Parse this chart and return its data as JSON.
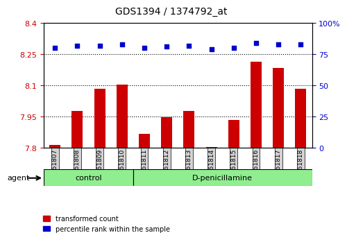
{
  "title": "GDS1394 / 1374792_at",
  "samples": [
    "GSM61807",
    "GSM61808",
    "GSM61809",
    "GSM61810",
    "GSM61811",
    "GSM61812",
    "GSM61813",
    "GSM61814",
    "GSM61815",
    "GSM61816",
    "GSM61817",
    "GSM61818"
  ],
  "red_values": [
    7.814,
    7.977,
    8.085,
    8.102,
    7.866,
    7.946,
    7.975,
    7.804,
    7.932,
    8.215,
    8.185,
    8.085
  ],
  "blue_values": [
    80,
    82,
    82,
    83,
    80,
    81,
    82,
    79,
    80,
    84,
    83,
    83
  ],
  "ylim_left": [
    7.8,
    8.4
  ],
  "ylim_right": [
    0,
    100
  ],
  "yticks_left": [
    7.8,
    7.95,
    8.1,
    8.25,
    8.4
  ],
  "yticks_right": [
    0,
    25,
    50,
    75,
    100
  ],
  "ytick_labels_left": [
    "7.8",
    "7.95",
    "8.1",
    "8.25",
    "8.4"
  ],
  "ytick_labels_right": [
    "0",
    "25",
    "50",
    "75",
    "100%"
  ],
  "hlines": [
    7.95,
    8.1,
    8.25
  ],
  "control_indices": [
    0,
    1,
    2,
    3
  ],
  "dpenicillamine_indices": [
    4,
    5,
    6,
    7,
    8,
    9,
    10,
    11
  ],
  "bar_color": "#cc0000",
  "dot_color": "#0000cc",
  "bar_baseline": 7.8,
  "control_label": "control",
  "dpenicillamine_label": "D-penicillamine",
  "agent_label": "agent",
  "legend_red": "transformed count",
  "legend_blue": "percentile rank within the sample",
  "bg_color": "#d3d3d3",
  "group_bg": "#90ee90",
  "title_color": "#333333"
}
